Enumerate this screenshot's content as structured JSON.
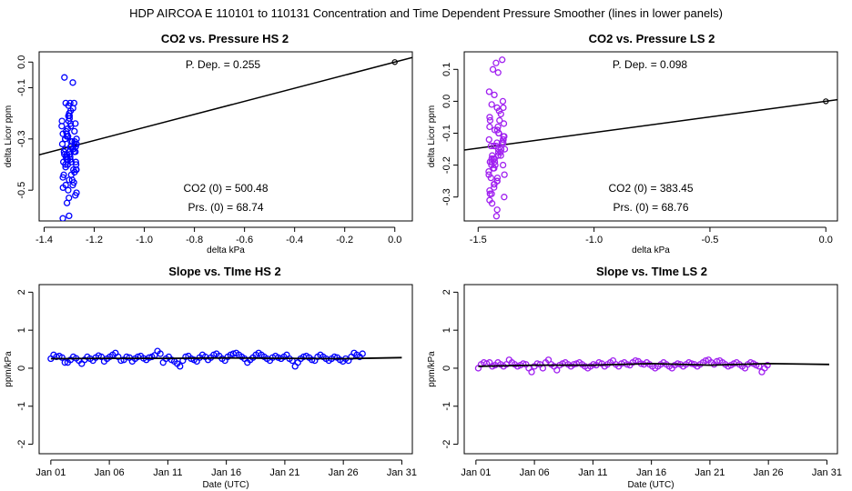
{
  "page_title": "HDP   AIRCOA E   110101 to 110131   Concentration and Time Dependent Pressure Smoother (lines in lower panels)",
  "colors": {
    "hs": "#0000ff",
    "ls": "#a020f0",
    "fit": "#000000"
  },
  "chart_data": [
    {
      "id": "hs-scatter",
      "type": "scatter",
      "title": "CO2 vs. Pressure HS 2",
      "xlabel": "delta kPa",
      "ylabel": "delta Licor ppm",
      "xlim": [
        -1.42,
        0.07
      ],
      "ylim": [
        -0.62,
        0.04
      ],
      "xticks": [
        -1.4,
        -1.2,
        -1.0,
        -0.8,
        -0.6,
        -0.4,
        -0.2,
        0.0
      ],
      "xtick_labels": [
        "-1.4",
        "-1.2",
        "-1.0",
        "-0.8",
        "-0.6",
        "-0.4",
        "-0.2",
        "0.0"
      ],
      "yticks": [
        0.0,
        -0.1,
        -0.3,
        -0.5
      ],
      "ytick_labels": [
        "0.0",
        "-0.1",
        "-0.3",
        "-0.5"
      ],
      "fit_line": {
        "slope": 0.255,
        "intercept": 0.0
      },
      "origin_point": [
        0.0,
        0.0
      ],
      "x_center": -1.3,
      "x_spread": 0.03,
      "y_values": [
        -0.06,
        -0.08,
        -0.16,
        -0.17,
        -0.16,
        -0.16,
        -0.18,
        -0.2,
        -0.21,
        -0.22,
        -0.23,
        -0.24,
        -0.25,
        -0.26,
        -0.27,
        -0.28,
        -0.29,
        -0.3,
        -0.3,
        -0.31,
        -0.31,
        -0.32,
        -0.32,
        -0.33,
        -0.33,
        -0.34,
        -0.34,
        -0.35,
        -0.35,
        -0.36,
        -0.36,
        -0.37,
        -0.37,
        -0.38,
        -0.38,
        -0.39,
        -0.39,
        -0.4,
        -0.4,
        -0.41,
        -0.42,
        -0.43,
        -0.44,
        -0.45,
        -0.46,
        -0.47,
        -0.48,
        -0.49,
        -0.5,
        -0.51,
        -0.52,
        -0.53,
        -0.55,
        -0.6,
        -0.61,
        -0.24,
        -0.27,
        -0.29,
        -0.31,
        -0.33,
        -0.35,
        -0.37,
        -0.39,
        -0.42,
        -0.44,
        -0.46,
        -0.28,
        -0.32,
        -0.36,
        -0.4,
        -0.19,
        -0.21,
        -0.23,
        -0.25,
        -0.34,
        -0.38,
        -0.3,
        -0.35,
        -0.42,
        -0.48
      ],
      "annotations": {
        "p_dep": "P. Dep. =  0.255",
        "co2_0": "CO2 (0) =  500.48",
        "prs_0": "Prs. (0) =  68.74"
      },
      "marker_color": "#0000ff"
    },
    {
      "id": "ls-scatter",
      "type": "scatter",
      "title": "CO2 vs. Pressure LS 2",
      "xlabel": "delta kPa",
      "ylabel": "delta Licor ppm",
      "xlim": [
        -1.56,
        0.05
      ],
      "ylim": [
        -0.375,
        0.155
      ],
      "xticks": [
        -1.5,
        -1.0,
        -0.5,
        0.0
      ],
      "xtick_labels": [
        "-1.5",
        "-1.0",
        "-0.5",
        "0.0"
      ],
      "yticks": [
        0.1,
        0.0,
        -0.1,
        -0.2,
        -0.3
      ],
      "ytick_labels": [
        "0.1",
        "0.0",
        "-0.1",
        "-0.2",
        "-0.3"
      ],
      "fit_line": {
        "slope": 0.098,
        "intercept": 0.0
      },
      "origin_point": [
        0.0,
        0.0
      ],
      "x_center": -1.42,
      "x_spread": 0.035,
      "y_values": [
        0.13,
        0.12,
        0.1,
        0.09,
        0.03,
        0.02,
        0.0,
        -0.01,
        -0.02,
        -0.03,
        -0.04,
        -0.05,
        -0.06,
        -0.07,
        -0.08,
        -0.09,
        -0.1,
        -0.1,
        -0.11,
        -0.12,
        -0.12,
        -0.13,
        -0.13,
        -0.14,
        -0.14,
        -0.15,
        -0.15,
        -0.16,
        -0.16,
        -0.17,
        -0.17,
        -0.18,
        -0.18,
        -0.19,
        -0.19,
        -0.2,
        -0.2,
        -0.21,
        -0.22,
        -0.23,
        -0.24,
        -0.25,
        -0.26,
        -0.27,
        -0.28,
        -0.29,
        -0.3,
        -0.31,
        -0.32,
        -0.34,
        -0.36,
        -0.21,
        -0.06,
        -0.09,
        -0.11,
        -0.14,
        -0.17,
        -0.2,
        -0.23,
        -0.26,
        -0.29,
        -0.02,
        -0.08,
        -0.13,
        -0.18,
        -0.24,
        -0.15,
        -0.19,
        -0.25,
        -0.12
      ],
      "annotations": {
        "p_dep": "P. Dep. =  0.098",
        "co2_0": "CO2 (0) =  383.45",
        "prs_0": "Prs. (0) =  68.76"
      },
      "marker_color": "#a020f0"
    },
    {
      "id": "hs-slope",
      "type": "scatter",
      "title": "Slope vs. TIme HS 2",
      "xlabel": "Date (UTC)",
      "ylabel": "ppm/kPa",
      "xlim": [
        0.0,
        31.9
      ],
      "ylim": [
        -2.25,
        2.2
      ],
      "xticks": [
        1,
        6,
        11,
        16,
        21,
        26,
        31
      ],
      "xtick_labels": [
        "Jan 01",
        "Jan 06",
        "Jan 11",
        "Jan 16",
        "Jan 21",
        "Jan 26",
        "Jan 31"
      ],
      "yticks": [
        -2,
        -1,
        0,
        1,
        2
      ],
      "ytick_labels": [
        "-2",
        "-1",
        "0",
        "1",
        "2"
      ],
      "x_start": 1,
      "x_step": 0.24,
      "y_values": [
        0.25,
        0.35,
        0.3,
        0.32,
        0.28,
        0.15,
        0.15,
        0.22,
        0.3,
        0.26,
        0.2,
        0.12,
        0.22,
        0.3,
        0.25,
        0.2,
        0.28,
        0.33,
        0.3,
        0.18,
        0.25,
        0.3,
        0.35,
        0.4,
        0.3,
        0.2,
        0.22,
        0.3,
        0.28,
        0.18,
        0.25,
        0.3,
        0.32,
        0.26,
        0.22,
        0.28,
        0.3,
        0.34,
        0.45,
        0.38,
        0.15,
        0.25,
        0.3,
        0.22,
        0.18,
        0.12,
        0.05,
        0.2,
        0.3,
        0.32,
        0.25,
        0.22,
        0.18,
        0.28,
        0.35,
        0.3,
        0.22,
        0.28,
        0.35,
        0.38,
        0.32,
        0.25,
        0.2,
        0.3,
        0.35,
        0.38,
        0.4,
        0.35,
        0.3,
        0.25,
        0.15,
        0.22,
        0.28,
        0.35,
        0.4,
        0.35,
        0.3,
        0.25,
        0.2,
        0.28,
        0.32,
        0.28,
        0.25,
        0.3,
        0.35,
        0.25,
        0.2,
        0.05,
        0.15,
        0.25,
        0.3,
        0.32,
        0.28,
        0.22,
        0.2,
        0.3,
        0.35,
        0.3,
        0.25,
        0.2,
        0.25,
        0.3,
        0.28,
        0.22,
        0.18,
        0.25,
        0.2,
        0.3,
        0.4,
        0.35,
        0.3,
        0.38
      ],
      "smoother": [
        [
          1,
          0.25
        ],
        [
          6,
          0.26
        ],
        [
          11,
          0.26
        ],
        [
          16,
          0.27
        ],
        [
          21,
          0.26
        ],
        [
          26,
          0.25
        ],
        [
          31,
          0.28
        ]
      ],
      "marker_color": "#0000ff"
    },
    {
      "id": "ls-slope",
      "type": "scatter",
      "title": "Slope vs. TIme LS 2",
      "xlabel": "Date (UTC)",
      "ylabel": "ppm/kPa",
      "xlim": [
        0.0,
        31.9
      ],
      "ylim": [
        -2.25,
        2.2
      ],
      "xticks": [
        1,
        6,
        11,
        16,
        21,
        26,
        31
      ],
      "xtick_labels": [
        "Jan 01",
        "Jan 06",
        "Jan 11",
        "Jan 16",
        "Jan 21",
        "Jan 26",
        "Jan 31"
      ],
      "yticks": [
        -2,
        -1,
        0,
        1,
        2
      ],
      "ytick_labels": [
        "-2",
        "-1",
        "0",
        "1",
        "2"
      ],
      "x_start": 1.2,
      "x_step": 0.24,
      "y_values": [
        0.0,
        0.1,
        0.15,
        0.12,
        0.15,
        0.05,
        0.08,
        0.15,
        0.1,
        0.05,
        0.1,
        0.22,
        0.15,
        0.1,
        0.05,
        0.08,
        0.12,
        0.1,
        0.0,
        -0.1,
        0.05,
        0.12,
        0.1,
        0.0,
        0.15,
        0.22,
        0.1,
        0.05,
        -0.05,
        0.08,
        0.12,
        0.15,
        0.1,
        0.05,
        0.1,
        0.12,
        0.15,
        0.1,
        0.05,
        0.0,
        0.05,
        0.1,
        0.08,
        0.15,
        0.12,
        0.05,
        0.1,
        0.15,
        0.2,
        0.1,
        0.05,
        0.12,
        0.15,
        0.1,
        0.08,
        0.15,
        0.2,
        0.18,
        0.12,
        0.1,
        0.15,
        0.1,
        0.05,
        0.0,
        0.05,
        0.1,
        0.15,
        0.1,
        0.05,
        0.0,
        0.08,
        0.12,
        0.1,
        0.05,
        0.1,
        0.15,
        0.12,
        0.1,
        0.05,
        0.1,
        0.15,
        0.2,
        0.22,
        0.15,
        0.1,
        0.18,
        0.2,
        0.15,
        0.1,
        0.05,
        0.08,
        0.12,
        0.15,
        0.1,
        0.05,
        0.0,
        0.1,
        0.15,
        0.12,
        0.08,
        0.05,
        -0.1,
        0.0,
        0.08
      ],
      "smoother": [
        [
          1.2,
          0.05
        ],
        [
          6,
          0.08
        ],
        [
          11,
          0.08
        ],
        [
          16,
          0.12
        ],
        [
          21,
          0.08
        ],
        [
          26,
          0.12
        ],
        [
          31.2,
          0.1
        ]
      ],
      "marker_color": "#a020f0"
    }
  ]
}
